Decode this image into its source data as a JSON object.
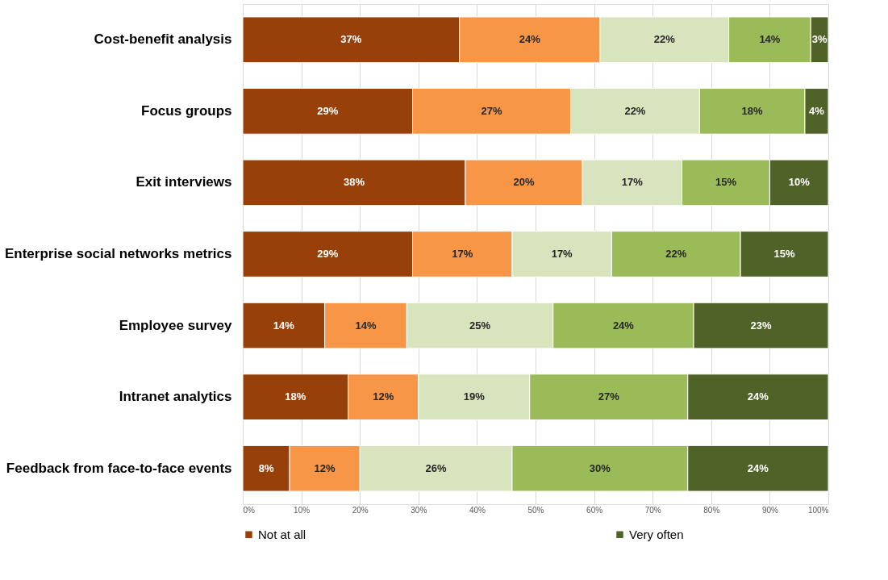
{
  "chart_data": {
    "type": "bar",
    "orientation": "horizontal",
    "stacked": true,
    "categories": [
      "Cost-benefit analysis",
      "Focus groups",
      "Exit interviews",
      "Enterprise social networks metrics",
      "Employee survey",
      "Intranet analytics",
      "Feedback from face-to-face events"
    ],
    "series": [
      {
        "name": "Not at all",
        "color": "#974009",
        "values": [
          37,
          29,
          38,
          29,
          14,
          18,
          8
        ],
        "value_labels": [
          "37%",
          "29%",
          "38%",
          "29%",
          "14%",
          "18%",
          "8%"
        ]
      },
      {
        "color": "#f79646",
        "values": [
          24,
          27,
          20,
          17,
          14,
          12,
          12
        ],
        "value_labels": [
          "24%",
          "27%",
          "20%",
          "17%",
          "14%",
          "12%",
          "12%"
        ]
      },
      {
        "color": "#d7e4bd",
        "values": [
          22,
          22,
          17,
          17,
          25,
          19,
          26
        ],
        "value_labels": [
          "22%",
          "22%",
          "17%",
          "17%",
          "25%",
          "19%",
          "26%"
        ]
      },
      {
        "color": "#9bbb59",
        "values": [
          14,
          18,
          15,
          22,
          24,
          27,
          30
        ],
        "value_labels": [
          "14%",
          "18%",
          "15%",
          "22%",
          "24%",
          "27%",
          "30%"
        ]
      },
      {
        "name": "Very often",
        "color": "#4f6228",
        "values": [
          3,
          4,
          10,
          15,
          23,
          24,
          24
        ],
        "value_labels": [
          "3%",
          "4%",
          "10%",
          "15%",
          "23%",
          "24%",
          "24%"
        ]
      }
    ],
    "xlim": [
      0,
      100
    ],
    "xticks": [
      {
        "value": 0,
        "label": "0%"
      },
      {
        "value": 10,
        "label": "10%"
      },
      {
        "value": 20,
        "label": "20%"
      },
      {
        "value": 30,
        "label": "30%"
      },
      {
        "value": 40,
        "label": "40%"
      },
      {
        "value": 50,
        "label": "50%"
      },
      {
        "value": 60,
        "label": "60%"
      },
      {
        "value": 70,
        "label": "70%"
      },
      {
        "value": 80,
        "label": "80%"
      },
      {
        "value": 90,
        "label": "90%"
      },
      {
        "value": 100,
        "label": "100%"
      }
    ],
    "grid": "x",
    "legend": "bottom"
  }
}
